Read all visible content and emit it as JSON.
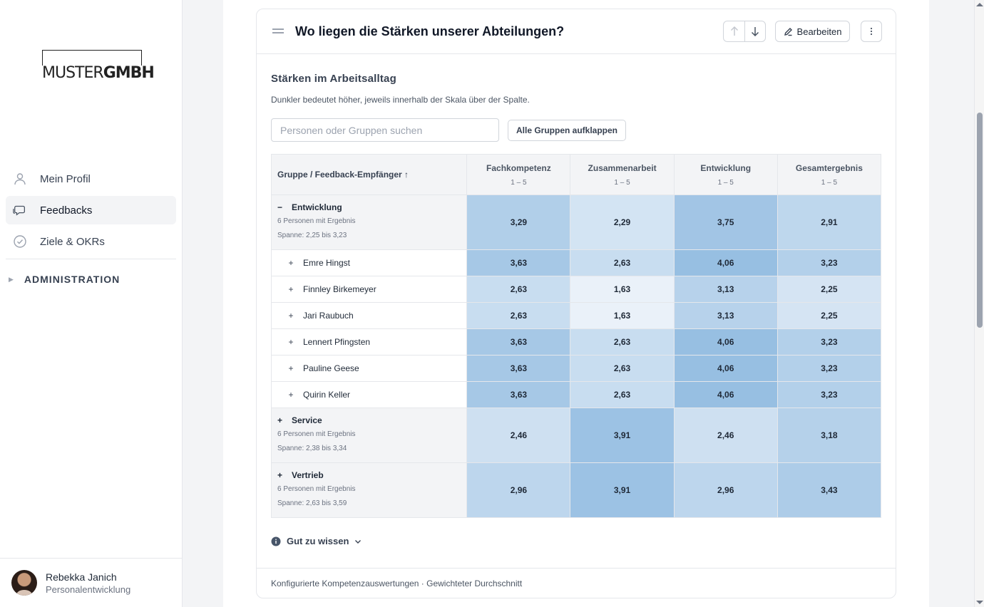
{
  "brand": {
    "logo_light": "MUSTER",
    "logo_bold": "GMBH"
  },
  "sidebar": {
    "items": [
      {
        "label": "Mein Profil",
        "icon": "user-icon"
      },
      {
        "label": "Feedbacks",
        "icon": "chat-icon"
      },
      {
        "label": "Ziele & OKRs",
        "icon": "check-circle-icon"
      }
    ],
    "admin_label": "ADMINISTRATION",
    "user": {
      "name": "Rebekka Janich",
      "role": "Personalentwicklung"
    }
  },
  "card": {
    "title": "Wo liegen die Stärken unserer Abteilungen?",
    "edit_label": "Bearbeiten",
    "section_title": "Stärken im Arbeitsalltag",
    "section_desc": "Dunkler bedeutet höher, jeweils innerhalb der Skala über der Spalte.",
    "search_placeholder": "Personen oder Gruppen suchen",
    "expand_label": "Alle Gruppen aufklappen",
    "info_label": "Gut zu wissen",
    "footer": "Konfigurierte Kompetenzauswertungen · Gewichteter Durchschnitt"
  },
  "table": {
    "first_header": "Gruppe / Feedback-Empfänger ↑",
    "columns": [
      {
        "label": "Fachkompetenz",
        "scale": "1 – 5"
      },
      {
        "label": "Zusammenarbeit",
        "scale": "1 – 5"
      },
      {
        "label": "Entwicklung",
        "scale": "1 – 5"
      },
      {
        "label": "Gesamtergebnis",
        "scale": "1 – 5"
      }
    ],
    "rows": [
      {
        "type": "group",
        "toggle": "−",
        "name": "Entwicklung",
        "meta1": "6 Personen mit Ergebnis",
        "meta2": "Spanne: 2,25 bis 3,23",
        "values": [
          "3,29",
          "2,29",
          "3,75",
          "2,91"
        ],
        "levels": [
          3.29,
          2.29,
          3.75,
          2.91
        ]
      },
      {
        "type": "person",
        "toggle": "+",
        "name": "Emre Hingst",
        "values": [
          "3,63",
          "2,63",
          "4,06",
          "3,23"
        ],
        "levels": [
          3.63,
          2.63,
          4.06,
          3.23
        ]
      },
      {
        "type": "person",
        "toggle": "+",
        "name": "Finnley Birkemeyer",
        "values": [
          "2,63",
          "1,63",
          "3,13",
          "2,25"
        ],
        "levels": [
          2.63,
          1.63,
          3.13,
          2.25
        ]
      },
      {
        "type": "person",
        "toggle": "+",
        "name": "Jari Raubuch",
        "values": [
          "2,63",
          "1,63",
          "3,13",
          "2,25"
        ],
        "levels": [
          2.63,
          1.63,
          3.13,
          2.25
        ]
      },
      {
        "type": "person",
        "toggle": "+",
        "name": "Lennert Pfingsten",
        "values": [
          "3,63",
          "2,63",
          "4,06",
          "3,23"
        ],
        "levels": [
          3.63,
          2.63,
          4.06,
          3.23
        ]
      },
      {
        "type": "person",
        "toggle": "+",
        "name": "Pauline Geese",
        "values": [
          "3,63",
          "2,63",
          "4,06",
          "3,23"
        ],
        "levels": [
          3.63,
          2.63,
          4.06,
          3.23
        ]
      },
      {
        "type": "person",
        "toggle": "+",
        "name": "Quirin Keller",
        "values": [
          "3,63",
          "2,63",
          "4,06",
          "3,23"
        ],
        "levels": [
          3.63,
          2.63,
          4.06,
          3.23
        ]
      },
      {
        "type": "group",
        "toggle": "+",
        "name": "Service",
        "meta1": "6 Personen mit Ergebnis",
        "meta2": "Spanne: 2,38 bis 3,34",
        "values": [
          "2,46",
          "3,91",
          "2,46",
          "3,18"
        ],
        "levels": [
          2.46,
          3.91,
          2.46,
          3.18
        ]
      },
      {
        "type": "group",
        "toggle": "+",
        "name": "Vertrieb",
        "meta1": "6 Personen mit Ergebnis",
        "meta2": "Spanne: 2,63 bis 3,59",
        "values": [
          "2,96",
          "3,91",
          "2,96",
          "3,43"
        ],
        "levels": [
          2.96,
          3.91,
          2.96,
          3.43
        ]
      }
    ]
  },
  "colors": {
    "heat_low": "#eef4fa",
    "heat_high": "#9fc3e3"
  }
}
